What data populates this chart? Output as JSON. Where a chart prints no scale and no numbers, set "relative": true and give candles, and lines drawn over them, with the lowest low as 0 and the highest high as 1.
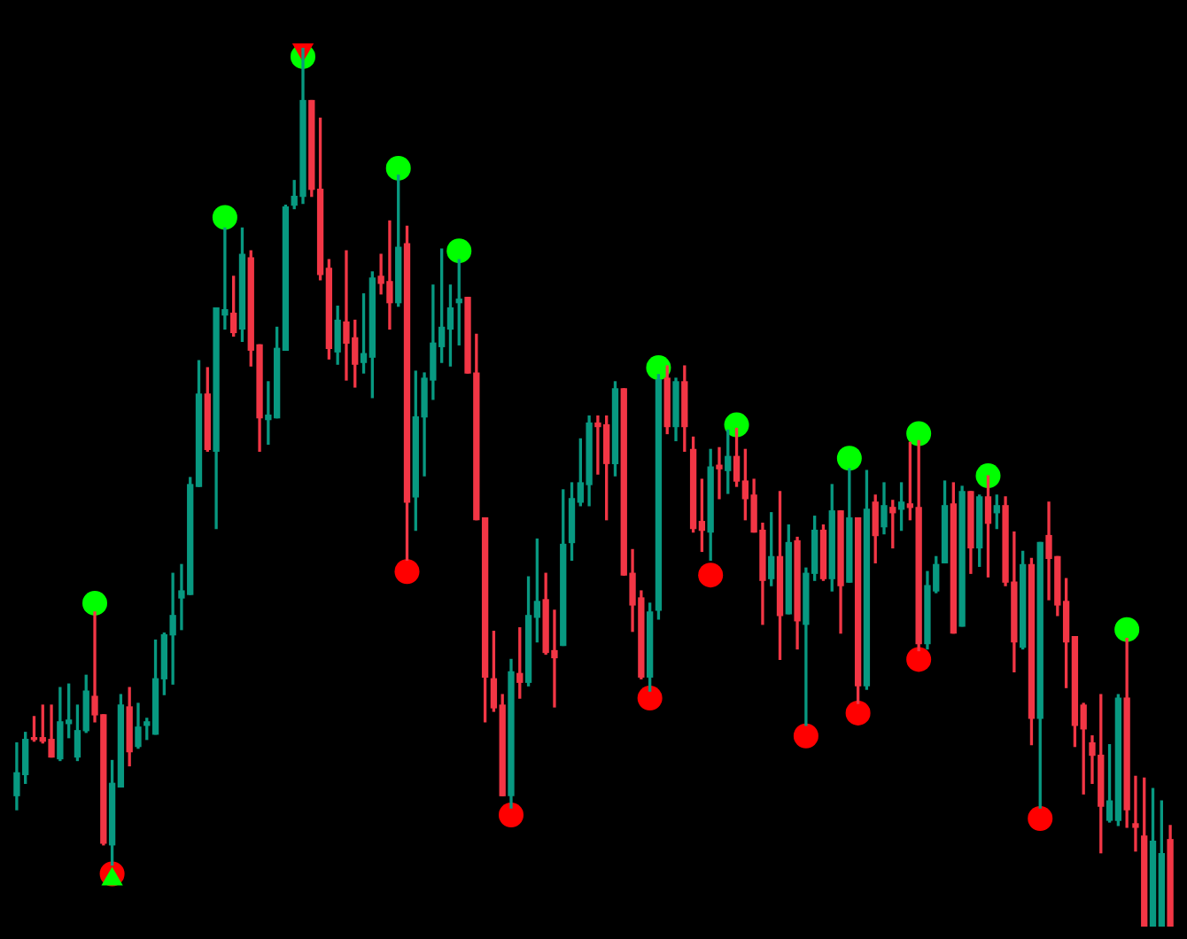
{
  "chart_data": {
    "type": "candlestick",
    "relative": true,
    "categories": [
      null,
      null,
      null,
      null,
      null,
      null,
      null,
      null,
      null,
      null,
      null,
      null,
      null,
      null,
      null,
      null,
      null,
      null,
      null,
      null,
      null,
      null,
      null,
      null,
      null,
      null,
      null,
      null,
      null,
      null,
      null,
      null,
      null,
      null,
      null,
      null,
      null,
      null,
      null,
      null,
      null,
      null,
      null,
      null,
      null,
      null,
      null,
      null,
      null,
      null,
      null,
      null,
      null,
      null,
      null,
      null,
      null,
      null,
      null,
      null,
      null,
      null,
      null,
      null,
      null,
      null,
      null,
      null,
      null,
      null,
      null,
      null,
      null,
      null,
      null,
      null,
      null,
      null,
      null,
      null,
      null,
      null,
      null,
      null,
      null,
      null,
      null,
      null,
      null,
      null,
      null,
      null,
      null,
      null,
      null,
      null,
      null,
      null,
      null,
      null,
      null,
      null,
      null,
      null,
      null,
      null,
      null,
      null,
      null,
      null,
      null,
      null,
      null,
      null,
      null,
      null,
      null,
      null,
      null,
      null,
      null,
      null,
      null,
      null,
      null,
      null,
      null,
      null,
      null,
      null,
      null,
      null,
      null,
      null
    ],
    "ohlc": [
      [
        0.149,
        0.209,
        0.133,
        0.175
      ],
      [
        0.173,
        0.221,
        0.163,
        0.213
      ],
      [
        0.215,
        0.239,
        0.211,
        0.213
      ],
      [
        0.215,
        0.252,
        0.209,
        0.211
      ],
      [
        0.213,
        0.252,
        0.193,
        0.193
      ],
      [
        0.191,
        0.272,
        0.189,
        0.233
      ],
      [
        0.231,
        0.276,
        0.215,
        0.235
      ],
      [
        0.193,
        0.252,
        0.189,
        0.223
      ],
      [
        0.223,
        0.286,
        0.221,
        0.268
      ],
      [
        0.262,
        0.358,
        0.233,
        0.241
      ],
      [
        0.241,
        0.241,
        0.093,
        0.095
      ],
      [
        0.093,
        0.189,
        0.07,
        0.163
      ],
      [
        0.159,
        0.264,
        0.159,
        0.252
      ],
      [
        0.25,
        0.272,
        0.183,
        0.199
      ],
      [
        0.205,
        0.254,
        0.203,
        0.227
      ],
      [
        0.229,
        0.237,
        0.213,
        0.233
      ],
      [
        0.219,
        0.326,
        0.219,
        0.282
      ],
      [
        0.282,
        0.334,
        0.264,
        0.332
      ],
      [
        0.332,
        0.402,
        0.276,
        0.354
      ],
      [
        0.374,
        0.412,
        0.338,
        0.382
      ],
      [
        0.378,
        0.511,
        0.378,
        0.503
      ],
      [
        0.501,
        0.644,
        0.501,
        0.606
      ],
      [
        0.606,
        0.636,
        0.541,
        0.543
      ],
      [
        0.541,
        0.704,
        0.453,
        0.704
      ],
      [
        0.696,
        0.795,
        0.68,
        0.702
      ],
      [
        0.698,
        0.74,
        0.672,
        0.676
      ],
      [
        0.68,
        0.795,
        0.666,
        0.765
      ],
      [
        0.761,
        0.769,
        0.638,
        0.656
      ],
      [
        0.662,
        0.662,
        0.541,
        0.579
      ],
      [
        0.577,
        0.62,
        0.549,
        0.582
      ],
      [
        0.579,
        0.682,
        0.579,
        0.658
      ],
      [
        0.656,
        0.821,
        0.656,
        0.819
      ],
      [
        0.821,
        0.849,
        0.817,
        0.831
      ],
      [
        0.831,
        1.0,
        0.823,
        0.94
      ],
      [
        0.94,
        0.94,
        0.831,
        0.839
      ],
      [
        0.839,
        0.92,
        0.736,
        0.742
      ],
      [
        0.749,
        0.759,
        0.646,
        0.658
      ],
      [
        0.654,
        0.706,
        0.64,
        0.69
      ],
      [
        0.688,
        0.769,
        0.622,
        0.664
      ],
      [
        0.67,
        0.69,
        0.614,
        0.64
      ],
      [
        0.642,
        0.72,
        0.63,
        0.652
      ],
      [
        0.648,
        0.745,
        0.602,
        0.738
      ],
      [
        0.74,
        0.765,
        0.72,
        0.732
      ],
      [
        0.734,
        0.803,
        0.68,
        0.71
      ],
      [
        0.71,
        0.855,
        0.706,
        0.773
      ],
      [
        0.777,
        0.797,
        0.417,
        0.483
      ],
      [
        0.489,
        0.632,
        0.451,
        0.58
      ],
      [
        0.58,
        0.63,
        0.513,
        0.624
      ],
      [
        0.622,
        0.73,
        0.6,
        0.664
      ],
      [
        0.66,
        0.771,
        0.642,
        0.682
      ],
      [
        0.68,
        0.73,
        0.638,
        0.704
      ],
      [
        0.71,
        0.759,
        0.662,
        0.714
      ],
      [
        0.716,
        0.716,
        0.63,
        0.63
      ],
      [
        0.63,
        0.674,
        0.463,
        0.463
      ],
      [
        0.465,
        0.465,
        0.233,
        0.284
      ],
      [
        0.282,
        0.336,
        0.245,
        0.249
      ],
      [
        0.252,
        0.264,
        0.149,
        0.149
      ],
      [
        0.149,
        0.304,
        0.135,
        0.29
      ],
      [
        0.288,
        0.34,
        0.26,
        0.278
      ],
      [
        0.278,
        0.398,
        0.274,
        0.354
      ],
      [
        0.352,
        0.441,
        0.324,
        0.37
      ],
      [
        0.372,
        0.402,
        0.31,
        0.312
      ],
      [
        0.314,
        0.36,
        0.25,
        0.306
      ],
      [
        0.32,
        0.497,
        0.32,
        0.435
      ],
      [
        0.437,
        0.505,
        0.417,
        0.487
      ],
      [
        0.483,
        0.555,
        0.479,
        0.505
      ],
      [
        0.503,
        0.581,
        0.479,
        0.573
      ],
      [
        0.573,
        0.581,
        0.515,
        0.569
      ],
      [
        0.571,
        0.581,
        0.463,
        0.527
      ],
      [
        0.527,
        0.62,
        0.513,
        0.612
      ],
      [
        0.612,
        0.612,
        0.4,
        0.4
      ],
      [
        0.402,
        0.429,
        0.336,
        0.366
      ],
      [
        0.374,
        0.382,
        0.282,
        0.284
      ],
      [
        0.284,
        0.368,
        0.268,
        0.358
      ],
      [
        0.36,
        0.628,
        0.35,
        0.622
      ],
      [
        0.624,
        0.638,
        0.561,
        0.569
      ],
      [
        0.569,
        0.624,
        0.553,
        0.62
      ],
      [
        0.62,
        0.638,
        0.541,
        0.569
      ],
      [
        0.543,
        0.557,
        0.449,
        0.453
      ],
      [
        0.461,
        0.509,
        0.427,
        0.451
      ],
      [
        0.449,
        0.543,
        0.417,
        0.523
      ],
      [
        0.525,
        0.545,
        0.487,
        0.521
      ],
      [
        0.519,
        0.565,
        0.493,
        0.535
      ],
      [
        0.535,
        0.567,
        0.501,
        0.507
      ],
      [
        0.507,
        0.543,
        0.463,
        0.487
      ],
      [
        0.491,
        0.509,
        0.449,
        0.449
      ],
      [
        0.451,
        0.459,
        0.344,
        0.394
      ],
      [
        0.396,
        0.471,
        0.388,
        0.421
      ],
      [
        0.421,
        0.495,
        0.304,
        0.354
      ],
      [
        0.356,
        0.457,
        0.356,
        0.437
      ],
      [
        0.439,
        0.443,
        0.316,
        0.348
      ],
      [
        0.344,
        0.408,
        0.229,
        0.402
      ],
      [
        0.402,
        0.467,
        0.394,
        0.451
      ],
      [
        0.451,
        0.457,
        0.394,
        0.396
      ],
      [
        0.396,
        0.503,
        0.382,
        0.473
      ],
      [
        0.473,
        0.473,
        0.334,
        0.388
      ],
      [
        0.392,
        0.521,
        0.392,
        0.465
      ],
      [
        0.465,
        0.465,
        0.254,
        0.274
      ],
      [
        0.274,
        0.519,
        0.27,
        0.475
      ],
      [
        0.483,
        0.491,
        0.414,
        0.445
      ],
      [
        0.455,
        0.505,
        0.447,
        0.479
      ],
      [
        0.477,
        0.485,
        0.431,
        0.471
      ],
      [
        0.475,
        0.505,
        0.451,
        0.483
      ],
      [
        0.481,
        0.551,
        0.463,
        0.477
      ],
      [
        0.477,
        0.553,
        0.314,
        0.322
      ],
      [
        0.322,
        0.404,
        0.316,
        0.388
      ],
      [
        0.382,
        0.421,
        0.38,
        0.412
      ],
      [
        0.414,
        0.507,
        0.414,
        0.479
      ],
      [
        0.481,
        0.505,
        0.334,
        0.334
      ],
      [
        0.342,
        0.501,
        0.342,
        0.495
      ],
      [
        0.495,
        0.495,
        0.402,
        0.431
      ],
      [
        0.431,
        0.491,
        0.41,
        0.489
      ],
      [
        0.489,
        0.513,
        0.398,
        0.459
      ],
      [
        0.471,
        0.491,
        0.453,
        0.479
      ],
      [
        0.479,
        0.489,
        0.388,
        0.392
      ],
      [
        0.392,
        0.449,
        0.29,
        0.324
      ],
      [
        0.318,
        0.427,
        0.316,
        0.412
      ],
      [
        0.412,
        0.419,
        0.207,
        0.237
      ],
      [
        0.237,
        0.437,
        0.135,
        0.437
      ],
      [
        0.445,
        0.483,
        0.372,
        0.419
      ],
      [
        0.421,
        0.421,
        0.354,
        0.366
      ],
      [
        0.37,
        0.396,
        0.272,
        0.324
      ],
      [
        0.33,
        0.33,
        0.205,
        0.229
      ],
      [
        0.252,
        0.254,
        0.151,
        0.225
      ],
      [
        0.209,
        0.217,
        0.163,
        0.195
      ],
      [
        0.195,
        0.264,
        0.084,
        0.137
      ],
      [
        0.121,
        0.207,
        0.119,
        0.143
      ],
      [
        0.121,
        0.264,
        0.115,
        0.26
      ],
      [
        0.26,
        0.328,
        0.113,
        0.133
      ],
      [
        0.117,
        0.171,
        0.086,
        0.113
      ],
      [
        0.103,
        0.169,
        0,
        0
      ],
      [
        0,
        0.157,
        0,
        0.097
      ],
      [
        0,
        0.143,
        0,
        0.083
      ],
      [
        0.099,
        0.115,
        0,
        0
      ]
    ],
    "colors": [
      "#089981",
      "#089981",
      "#f23645",
      "#f23645",
      "#f23645",
      "#089981",
      "#089981",
      "#089981",
      "#089981",
      "#f23645",
      "#f23645",
      "#089981",
      "#089981",
      "#f23645",
      "#089981",
      "#089981",
      "#089981",
      "#089981",
      "#089981",
      "#089981",
      "#089981",
      "#089981",
      "#f23645",
      "#089981",
      "#089981",
      "#f23645",
      "#089981",
      "#f23645",
      "#f23645",
      "#089981",
      "#089981",
      "#089981",
      "#089981",
      "#089981",
      "#f23645",
      "#f23645",
      "#f23645",
      "#089981",
      "#f23645",
      "#f23645",
      "#089981",
      "#089981",
      "#f23645",
      "#f23645",
      "#089981",
      "#f23645",
      "#089981",
      "#089981",
      "#089981",
      "#089981",
      "#089981",
      "#089981",
      "#f23645",
      "#f23645",
      "#f23645",
      "#f23645",
      "#f23645",
      "#089981",
      "#f23645",
      "#089981",
      "#089981",
      "#f23645",
      "#f23645",
      "#089981",
      "#089981",
      "#089981",
      "#089981",
      "#f23645",
      "#f23645",
      "#089981",
      "#f23645",
      "#f23645",
      "#f23645",
      "#089981",
      "#089981",
      "#f23645",
      "#089981",
      "#f23645",
      "#f23645",
      "#f23645",
      "#089981",
      "#f23645",
      "#089981",
      "#f23645",
      "#f23645",
      "#f23645",
      "#f23645",
      "#089981",
      "#f23645",
      "#089981",
      "#f23645",
      "#089981",
      "#089981",
      "#f23645",
      "#089981",
      "#f23645",
      "#089981",
      "#f23645",
      "#089981",
      "#f23645",
      "#089981",
      "#f23645",
      "#089981",
      "#f23645",
      "#f23645",
      "#089981",
      "#089981",
      "#089981",
      "#f23645",
      "#089981",
      "#f23645",
      "#089981",
      "#f23645",
      "#089981",
      "#f23645",
      "#f23645",
      "#089981",
      "#f23645",
      "#089981",
      "#f23645",
      "#f23645",
      "#f23645",
      "#f23645",
      "#f23645",
      "#f23645",
      "#f23645",
      "#089981",
      "#089981",
      "#f23645",
      "#f23645",
      "#f23645",
      "#089981",
      "#089981",
      "#f23645"
    ],
    "series": [
      {
        "type": "scatter",
        "color": "#00ff00",
        "marker": "circle",
        "values": [
          null,
          null,
          null,
          null,
          null,
          null,
          null,
          null,
          null,
          0.368,
          null,
          null,
          null,
          null,
          null,
          null,
          null,
          null,
          null,
          null,
          null,
          null,
          null,
          null,
          0.807,
          null,
          null,
          null,
          null,
          null,
          null,
          null,
          null,
          0.99,
          null,
          null,
          null,
          null,
          null,
          null,
          null,
          null,
          null,
          null,
          0.863,
          null,
          null,
          null,
          null,
          null,
          null,
          0.769,
          null,
          null,
          null,
          null,
          null,
          null,
          null,
          null,
          null,
          null,
          null,
          null,
          null,
          null,
          null,
          null,
          null,
          null,
          null,
          null,
          null,
          null,
          0.636,
          null,
          null,
          null,
          null,
          null,
          null,
          null,
          null,
          0.571,
          null,
          null,
          null,
          null,
          null,
          null,
          null,
          null,
          null,
          null,
          null,
          null,
          0.533,
          null,
          null,
          null,
          null,
          null,
          null,
          null,
          0.561,
          null,
          null,
          null,
          null,
          null,
          null,
          null,
          0.513,
          null,
          null,
          null,
          null,
          null,
          null,
          null,
          null,
          null,
          null,
          null,
          null,
          null,
          null,
          null,
          0.338,
          null,
          null,
          null,
          null,
          null
        ]
      },
      {
        "type": "scatter",
        "color": "#ff0000",
        "marker": "circle",
        "values": [
          null,
          null,
          null,
          null,
          null,
          null,
          null,
          null,
          null,
          null,
          null,
          0.06,
          null,
          null,
          null,
          null,
          null,
          null,
          null,
          null,
          null,
          null,
          null,
          null,
          null,
          null,
          null,
          null,
          null,
          null,
          null,
          null,
          null,
          null,
          null,
          null,
          null,
          null,
          null,
          null,
          null,
          null,
          null,
          null,
          null,
          0.404,
          null,
          null,
          null,
          null,
          null,
          null,
          null,
          null,
          null,
          null,
          null,
          0.127,
          null,
          null,
          null,
          null,
          null,
          null,
          null,
          null,
          null,
          null,
          null,
          null,
          null,
          null,
          null,
          0.26,
          null,
          null,
          null,
          null,
          null,
          null,
          0.4,
          null,
          null,
          null,
          null,
          null,
          null,
          null,
          null,
          null,
          null,
          0.217,
          null,
          null,
          null,
          null,
          null,
          0.243,
          null,
          null,
          null,
          null,
          null,
          null,
          0.304,
          null,
          null,
          null,
          null,
          null,
          null,
          null,
          null,
          null,
          null,
          null,
          null,
          null,
          0.123,
          null,
          null,
          null,
          null,
          null,
          null,
          null,
          null,
          null,
          null,
          null,
          null,
          null,
          null,
          null
        ]
      },
      {
        "type": "scatter",
        "color": "#00ff00",
        "marker": "triangle",
        "values": [
          null,
          null,
          null,
          null,
          null,
          null,
          null,
          null,
          null,
          null,
          null,
          0.054,
          null,
          null,
          null,
          null,
          null,
          null,
          null,
          null,
          null,
          null,
          null,
          null,
          null,
          null,
          null,
          null,
          null,
          null,
          null,
          null,
          null,
          null,
          null,
          null,
          null,
          null,
          null,
          null,
          null,
          null,
          null,
          null,
          null,
          null,
          null,
          null,
          null,
          null,
          null,
          null,
          null,
          null,
          null,
          null,
          null,
          null,
          null,
          null,
          null,
          null,
          null,
          null,
          null,
          null,
          null,
          null,
          null,
          null,
          null,
          null,
          null,
          null,
          null,
          null,
          null,
          null,
          null,
          null,
          null,
          null,
          null,
          null,
          null,
          null,
          null,
          null,
          null,
          null,
          null,
          null,
          null,
          null,
          null,
          null,
          null,
          null,
          null,
          null,
          null,
          null,
          null,
          null,
          null,
          null,
          null,
          null,
          null,
          null,
          null,
          null,
          null,
          null,
          null,
          null,
          null,
          null,
          null,
          null,
          null,
          null,
          null,
          null,
          null,
          null,
          null,
          null,
          null,
          null,
          null,
          null,
          null,
          null
        ]
      },
      {
        "type": "scatter",
        "color": "#ff0000",
        "marker": "triangle",
        "values": [
          null,
          null,
          null,
          null,
          null,
          null,
          null,
          null,
          null,
          null,
          null,
          null,
          null,
          null,
          null,
          null,
          null,
          null,
          null,
          null,
          null,
          null,
          null,
          null,
          null,
          null,
          null,
          null,
          null,
          null,
          null,
          null,
          null,
          0.998,
          null,
          null,
          null,
          null,
          null,
          null,
          null,
          null,
          null,
          null,
          null,
          null,
          null,
          null,
          null,
          null,
          null,
          null,
          null,
          null,
          null,
          null,
          null,
          null,
          null,
          null,
          null,
          null,
          null,
          null,
          null,
          null,
          null,
          null,
          null,
          null,
          null,
          null,
          null,
          null,
          null,
          null,
          null,
          null,
          null,
          null,
          null,
          null,
          null,
          null,
          null,
          null,
          null,
          null,
          null,
          null,
          null,
          null,
          null,
          null,
          null,
          null,
          null,
          null,
          null,
          null,
          null,
          null,
          null,
          null,
          null,
          null,
          null,
          null,
          null,
          null,
          null,
          null,
          null,
          null,
          null,
          null,
          null,
          null,
          null,
          null,
          null,
          null,
          null,
          null,
          null,
          null,
          null,
          null,
          null,
          null,
          null,
          null,
          null,
          null
        ]
      }
    ]
  }
}
